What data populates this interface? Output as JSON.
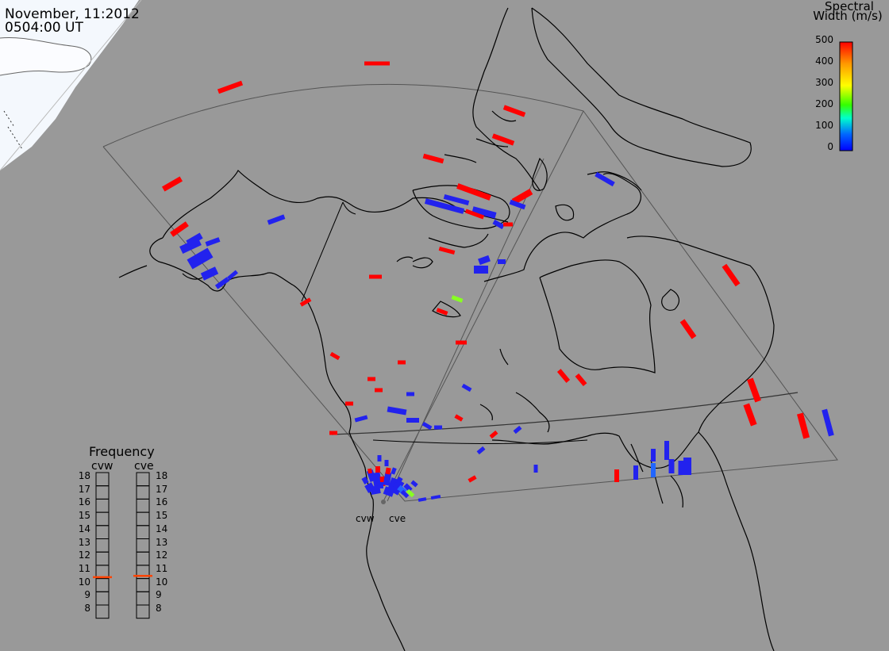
{
  "header": {
    "date": "November, 11:2012",
    "time": "0504:00 UT"
  },
  "colorbar": {
    "title_line1": "Spectral",
    "title_line2": "Width (m/s)",
    "ticks": [
      "500",
      "400",
      "300",
      "200",
      "100",
      "0"
    ],
    "colors": [
      "#ff0000",
      "#ff9900",
      "#ffff00",
      "#33ff00",
      "#00ffcc",
      "#0066ff",
      "#0000ff"
    ]
  },
  "frequency_panel": {
    "title": "Frequency",
    "left_radar": "cvw",
    "right_radar": "cve",
    "ticks": [
      "18",
      "17",
      "16",
      "15",
      "14",
      "13",
      "12",
      "11",
      "10",
      "9",
      "8"
    ],
    "cvw_mhz": 10.6,
    "cve_mhz": 10.7,
    "marker_color": "#ff4400"
  },
  "radar_sites": {
    "west_label": "cvw",
    "east_label": "cve"
  },
  "colors": {
    "ocean": "#999999",
    "land": "#999999",
    "ice": "#f5f9ff",
    "coast": "#000000",
    "fov": "#555555",
    "high_width": "#ff0000",
    "low_width": "#2222ee",
    "medium_width": "#88ff22",
    "mid_blue": "#2266ff"
  }
}
